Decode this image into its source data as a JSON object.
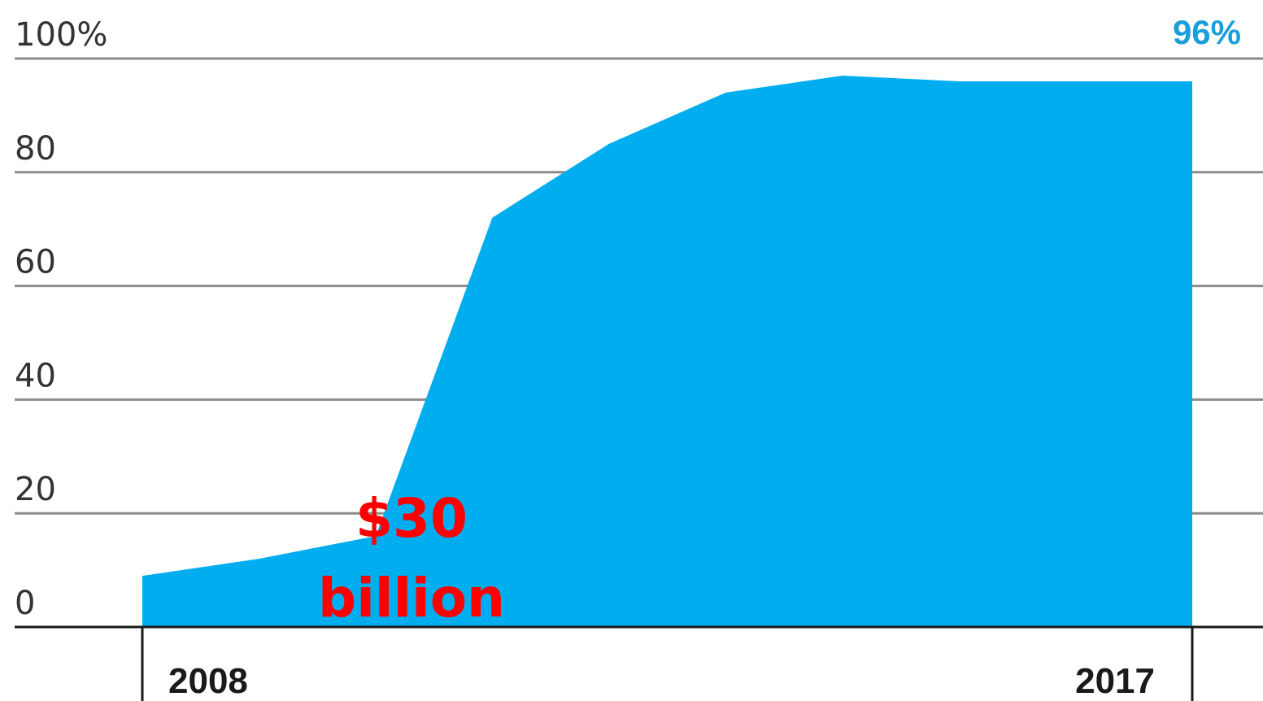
{
  "chart_data": {
    "type": "area",
    "title": "",
    "xlabel": "",
    "ylabel": "",
    "x": [
      2008,
      2009,
      2010,
      2011,
      2012,
      2013,
      2014,
      2015,
      2016,
      2017
    ],
    "series": [
      {
        "values": [
          9,
          12,
          16,
          72,
          85,
          94,
          97,
          96,
          96,
          96
        ]
      }
    ],
    "ylim": [
      0,
      100
    ],
    "xlim": [
      2008,
      2017
    ],
    "y_ticks": [
      0,
      20,
      40,
      60,
      80,
      100
    ],
    "y_tick_labels": [
      "0",
      "20",
      "40",
      "60",
      "80",
      "100%"
    ],
    "x_tick_labels": [
      "2008",
      "2017"
    ],
    "end_label": "96%",
    "annotation": {
      "line1": "$30",
      "line2": "billion"
    },
    "grid": true,
    "colors": {
      "area": "#00aeef",
      "end_label": "#1a9fdb",
      "annotation": "#ff0000",
      "grid": "#8c8c8c",
      "axis": "#1a1a1a"
    }
  }
}
